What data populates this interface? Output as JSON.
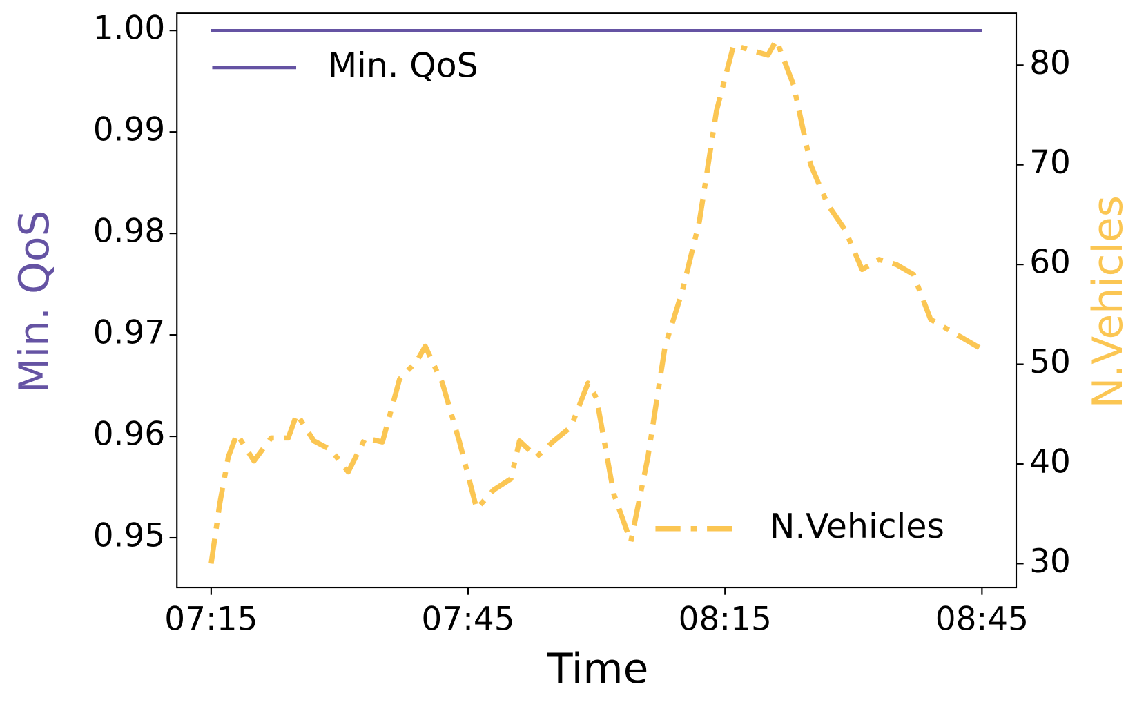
{
  "chart_data": {
    "type": "line",
    "xlabel": "Time",
    "ylabel": "Min. QoS",
    "y2label": "N.Vehicles",
    "x": [
      "07:15",
      "07:16",
      "07:17",
      "07:18",
      "07:20",
      "07:22",
      "07:24",
      "07:25",
      "07:27",
      "07:29",
      "07:31",
      "07:33",
      "07:35",
      "07:37",
      "07:39",
      "07:40",
      "07:42",
      "07:44",
      "07:46",
      "07:48",
      "07:50",
      "07:51",
      "07:53",
      "07:55",
      "07:57",
      "07:59",
      "08:00",
      "08:02",
      "08:04",
      "08:06",
      "08:08",
      "08:10",
      "08:12",
      "08:14",
      "08:16",
      "08:18",
      "08:20",
      "08:21",
      "08:23",
      "08:25",
      "08:27",
      "08:29",
      "08:31",
      "08:33",
      "08:35",
      "08:37",
      "08:39",
      "08:41",
      "08:43",
      "08:45"
    ],
    "series": [
      {
        "name": "Min. QoS",
        "color": "#6553a3",
        "linestyle": "solid",
        "axis": "y",
        "values": [
          1,
          1,
          1,
          1,
          1,
          1,
          1,
          1,
          1,
          1,
          1,
          1,
          1,
          1,
          1,
          1,
          1,
          1,
          1,
          1,
          1,
          1,
          1,
          1,
          1,
          1,
          1,
          1,
          1,
          1,
          1,
          1,
          1,
          1,
          1,
          1,
          1,
          1,
          1,
          1,
          1,
          1,
          1,
          1,
          1,
          1,
          1,
          1,
          1,
          1
        ]
      },
      {
        "name": "N.Vehicles",
        "color": "#fbc653",
        "linestyle": "dashdot",
        "axis": "y2",
        "values": [
          30,
          36,
          40.7,
          43,
          40.3,
          42.6,
          42.6,
          45,
          42.3,
          41.4,
          39.2,
          42.6,
          42.2,
          48.5,
          50.3,
          51.8,
          48.1,
          42.2,
          35.5,
          37.4,
          38.5,
          42.3,
          40.7,
          42.3,
          43.7,
          48.1,
          46.6,
          37,
          32.2,
          40.7,
          51.8,
          57.3,
          64.3,
          75.4,
          82,
          81.5,
          81,
          82.5,
          78,
          70,
          66,
          63.5,
          59.5,
          60.5,
          60,
          59,
          54.5,
          53.5,
          52.5,
          51.5
        ]
      }
    ],
    "xlim": [
      "07:11",
      "08:49"
    ],
    "xticks": [
      "07:15",
      "07:45",
      "08:15",
      "08:45"
    ],
    "ylim": [
      0.9451,
      1.0017
    ],
    "yticks": [
      {
        "value": 0.95,
        "label": "0.95"
      },
      {
        "value": 0.96,
        "label": "0.96"
      },
      {
        "value": 0.97,
        "label": "0.97"
      },
      {
        "value": 0.98,
        "label": "0.98"
      },
      {
        "value": 0.99,
        "label": "0.99"
      },
      {
        "value": 1,
        "label": "1.00"
      }
    ],
    "y2lim": [
      27.6,
      85.2
    ],
    "y2ticks": [
      30,
      40,
      50,
      60,
      70,
      80
    ]
  }
}
